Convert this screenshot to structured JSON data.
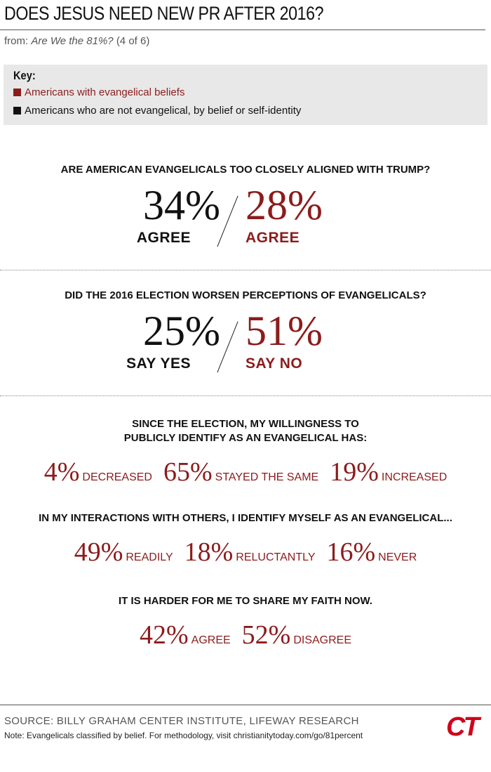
{
  "header": {
    "title": "DOES JESUS NEED NEW PR AFTER 2016?",
    "from": "from:",
    "source_title": "Are We the 81%?",
    "part": "(4 of 6)"
  },
  "key": {
    "title": "Key:",
    "items": [
      {
        "label": "Americans with evangelical beliefs",
        "color": "#8c1c1c"
      },
      {
        "label": "Americans who are not evangelical, by belief or self-identity",
        "color": "#111111"
      }
    ]
  },
  "comparisons": [
    {
      "question": "ARE AMERICAN EVANGELICALS TOO CLOSELY ALIGNED WITH TRUMP?",
      "left": {
        "value": "34%",
        "label": "AGREE"
      },
      "right": {
        "value": "28%",
        "label": "AGREE"
      }
    },
    {
      "question": "DID THE 2016 ELECTION WORSEN PERCEPTIONS OF EVANGELICALS?",
      "left": {
        "value": "25%",
        "label": "SAY YES"
      },
      "right": {
        "value": "51%",
        "label": "SAY NO"
      }
    }
  ],
  "stats": [
    {
      "question_lines": [
        "SINCE THE ELECTION, MY WILLINGNESS TO",
        "PUBLICLY IDENTIFY AS AN EVANGELICAL HAS:"
      ],
      "items": [
        {
          "value": "4%",
          "label": "DECREASED"
        },
        {
          "value": "65%",
          "label": "STAYED THE SAME"
        },
        {
          "value": "19%",
          "label": "INCREASED"
        }
      ]
    },
    {
      "question_lines": [
        "IN MY INTERACTIONS WITH OTHERS, I IDENTIFY MYSELF AS AN EVANGELICAL..."
      ],
      "items": [
        {
          "value": "49%",
          "label": "READILY"
        },
        {
          "value": "18%",
          "label": "RELUCTANTLY"
        },
        {
          "value": "16%",
          "label": "NEVER"
        }
      ]
    },
    {
      "question_lines": [
        "IT IS HARDER FOR ME TO SHARE MY FAITH NOW."
      ],
      "items": [
        {
          "value": "42%",
          "label": "AGREE"
        },
        {
          "value": "52%",
          "label": "DISAGREE"
        }
      ]
    }
  ],
  "footer": {
    "source": "SOURCE: BILLY GRAHAM CENTER INSTITUTE, LIFEWAY RESEARCH",
    "note": "Note: Evangelicals classified by belief. For methodology, visit christianitytoday.com/go/81percent",
    "logo": "CT"
  }
}
